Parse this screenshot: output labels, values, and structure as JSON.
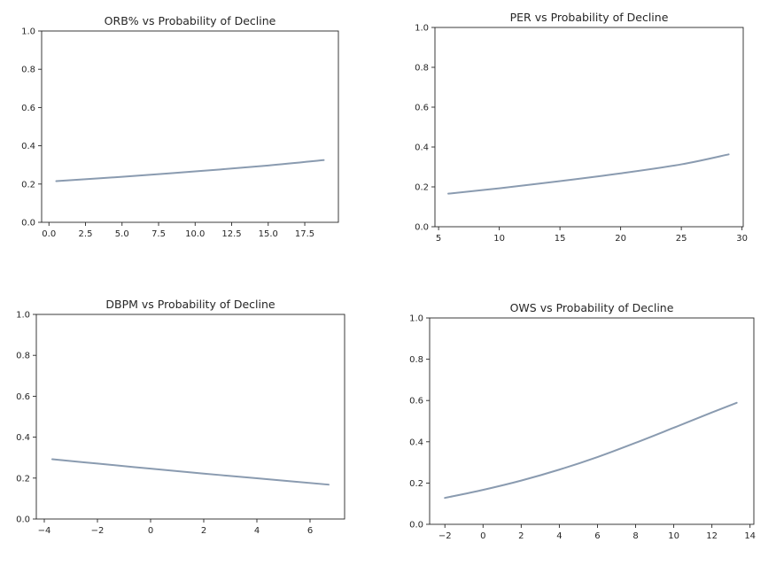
{
  "chart_data": [
    {
      "type": "line",
      "title": "ORB% vs Probability of Decline",
      "xlabel": "",
      "ylabel": "",
      "xlim": [
        -0.5,
        19.8
      ],
      "ylim": [
        0,
        1
      ],
      "xticks": [
        0,
        2.5,
        5,
        7.5,
        10,
        12.5,
        15,
        17.5
      ],
      "xtick_labels": [
        "0.0",
        "2.5",
        "5.0",
        "7.5",
        "10.0",
        "12.5",
        "15.0",
        "17.5"
      ],
      "yticks": [
        0,
        0.2,
        0.4,
        0.6,
        0.8,
        1.0
      ],
      "ytick_labels": [
        "0.0",
        "0.2",
        "0.4",
        "0.6",
        "0.8",
        "1.0"
      ],
      "grid": false,
      "line_color": "#8a9bb0",
      "series": [
        {
          "x": [
            0.5,
            5,
            10,
            15,
            18.8
          ],
          "y": [
            0.215,
            0.238,
            0.266,
            0.297,
            0.325
          ]
        }
      ]
    },
    {
      "type": "line",
      "title": "PER vs Probability of Decline",
      "xlabel": "",
      "ylabel": "",
      "xlim": [
        4.7,
        30.1
      ],
      "ylim": [
        0,
        1
      ],
      "xticks": [
        5,
        10,
        15,
        20,
        25,
        30
      ],
      "xtick_labels": [
        "5",
        "10",
        "15",
        "20",
        "25",
        "30"
      ],
      "yticks": [
        0,
        0.2,
        0.4,
        0.6,
        0.8,
        1.0
      ],
      "ytick_labels": [
        "0.0",
        "0.2",
        "0.4",
        "0.6",
        "0.8",
        "1.0"
      ],
      "grid": false,
      "line_color": "#8a9bb0",
      "series": [
        {
          "x": [
            5.8,
            10,
            15,
            20,
            25,
            28.9
          ],
          "y": [
            0.166,
            0.193,
            0.229,
            0.268,
            0.313,
            0.363
          ]
        }
      ]
    },
    {
      "type": "line",
      "title": "DBPM vs Probability of Decline",
      "xlabel": "",
      "ylabel": "",
      "xlim": [
        -4.3,
        7.3
      ],
      "ylim": [
        0,
        1
      ],
      "xticks": [
        -4,
        -2,
        0,
        2,
        4,
        6
      ],
      "xtick_labels": [
        "−4",
        "−2",
        "0",
        "2",
        "4",
        "6"
      ],
      "yticks": [
        0,
        0.2,
        0.4,
        0.6,
        0.8,
        1.0
      ],
      "ytick_labels": [
        "0.0",
        "0.2",
        "0.4",
        "0.6",
        "0.8",
        "1.0"
      ],
      "grid": false,
      "line_color": "#8a9bb0",
      "series": [
        {
          "x": [
            -3.7,
            -2,
            0,
            2,
            4,
            6.7
          ],
          "y": [
            0.292,
            0.271,
            0.246,
            0.222,
            0.199,
            0.168
          ]
        }
      ]
    },
    {
      "type": "line",
      "title": "OWS vs Probability of Decline",
      "xlabel": "",
      "ylabel": "",
      "xlim": [
        -2.8,
        14.2
      ],
      "ylim": [
        0,
        1
      ],
      "xticks": [
        -2,
        0,
        2,
        4,
        6,
        8,
        10,
        12,
        14
      ],
      "xtick_labels": [
        "−2",
        "0",
        "2",
        "4",
        "6",
        "8",
        "10",
        "12",
        "14"
      ],
      "yticks": [
        0,
        0.2,
        0.4,
        0.6,
        0.8,
        1.0
      ],
      "ytick_labels": [
        "0.0",
        "0.2",
        "0.4",
        "0.6",
        "0.8",
        "1.0"
      ],
      "grid": false,
      "line_color": "#8a9bb0",
      "series": [
        {
          "x": [
            -2,
            0,
            2,
            4,
            6,
            8,
            10,
            12,
            13.3
          ],
          "y": [
            0.128,
            0.167,
            0.212,
            0.265,
            0.326,
            0.395,
            0.468,
            0.542,
            0.589
          ]
        }
      ]
    }
  ]
}
